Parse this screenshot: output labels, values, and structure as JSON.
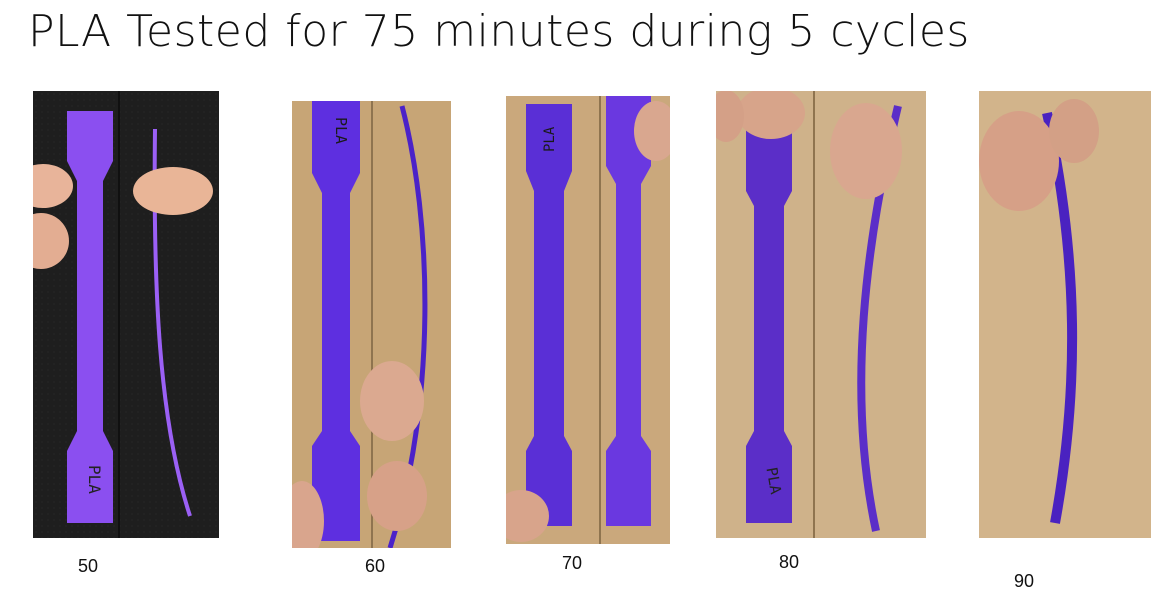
{
  "title": "PLA Tested for 75 minutes during 5 cycles",
  "colors": {
    "purple": "#6a2fe0",
    "purple_dark": "#4b1fb3",
    "wood": "#c9a97b",
    "fabric": "#1f1f1f"
  },
  "samples": [
    {
      "label": "50",
      "specimen_text": "PLA",
      "background": "dark-fabric"
    },
    {
      "label": "60",
      "specimen_text": "PLA",
      "background": "wood"
    },
    {
      "label": "70",
      "specimen_text": "PLA",
      "background": "wood"
    },
    {
      "label": "80",
      "specimen_text": "PLA",
      "background": "wood"
    },
    {
      "label": "90",
      "specimen_text": "",
      "background": "wood"
    }
  ]
}
